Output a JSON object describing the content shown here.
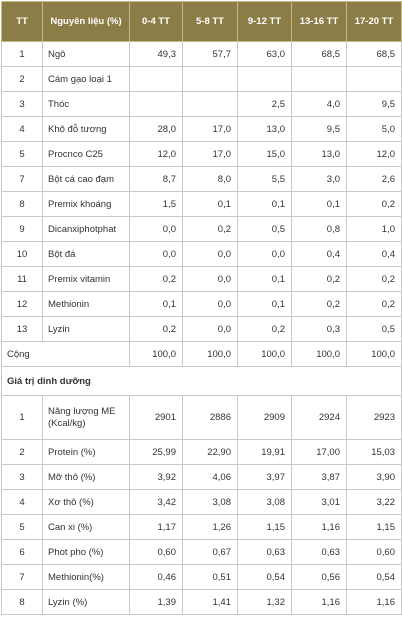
{
  "header": {
    "tt": "TT",
    "ingredient": "Nguyên liệu (%)",
    "phases": [
      "0-4 TT",
      "5-8 TT",
      "9-12 TT",
      "13-16 TT",
      "17-20 TT"
    ]
  },
  "ingredients": [
    {
      "tt": "1",
      "name": "Ngô",
      "values": [
        "49,3",
        "57,7",
        "63,0",
        "68,5",
        "68,5"
      ]
    },
    {
      "tt": "2",
      "name": "Cám gạo loại 1",
      "values": [
        "",
        "",
        "",
        "",
        ""
      ]
    },
    {
      "tt": "3",
      "name": "Thóc",
      "values": [
        "",
        "",
        "2,5",
        "4,0",
        "9,5"
      ]
    },
    {
      "tt": "4",
      "name": "Khô đỗ tương",
      "values": [
        "28,0",
        "17,0",
        "13,0",
        "9,5",
        "5,0"
      ]
    },
    {
      "tt": "5",
      "name": "Procnco C25",
      "values": [
        "12,0",
        "17,0",
        "15,0",
        "13,0",
        "12,0"
      ]
    },
    {
      "tt": "7",
      "name": "Bột cá cao đạm",
      "values": [
        "8,7",
        "8,0",
        "5,5",
        "3,0",
        "2,6"
      ]
    },
    {
      "tt": "8",
      "name": "Premix khoáng",
      "values": [
        "1,5",
        "0,1",
        "0,1",
        "0,1",
        "0,2"
      ]
    },
    {
      "tt": "9",
      "name": "Dicanxiphotphat",
      "values": [
        "0,0",
        "0,2",
        "0,5",
        "0,8",
        "1,0"
      ]
    },
    {
      "tt": "10",
      "name": "Bột đá",
      "values": [
        "0,0",
        "0,0",
        "0,0",
        "0,4",
        "0,4"
      ]
    },
    {
      "tt": "11",
      "name": "Premix vitamin",
      "values": [
        "0,2",
        "0,0",
        "0,1",
        "0,2",
        "0,2"
      ]
    },
    {
      "tt": "12",
      "name": "Methionin",
      "values": [
        "0,1",
        "0,0",
        "0,1",
        "0,2",
        "0,2"
      ]
    },
    {
      "tt": "13",
      "name": "Lyzin",
      "values": [
        "0,2",
        "0,0",
        "0,2",
        "0,3",
        "0,5"
      ]
    }
  ],
  "total": {
    "label": "Cộng",
    "values": [
      "100,0",
      "100,0",
      "100,0",
      "100,0",
      "100,0"
    ]
  },
  "nutrition_title": "Giá trị dinh dưỡng",
  "nutrition": [
    {
      "tt": "1",
      "name": "Năng lượng ME (Kcal/kg)",
      "values": [
        "2901",
        "2886",
        "2909",
        "2924",
        "2923"
      ]
    },
    {
      "tt": "2",
      "name": "Protein (%)",
      "values": [
        "25,99",
        "22,90",
        "19,91",
        "17,00",
        "15,03"
      ]
    },
    {
      "tt": "3",
      "name": "Mỡ thô (%)",
      "values": [
        "3,92",
        "4,06",
        "3,97",
        "3,87",
        "3,90"
      ]
    },
    {
      "tt": "4",
      "name": "Xơ thô (%)",
      "values": [
        "3,42",
        "3,08",
        "3,08",
        "3,01",
        "3,22"
      ]
    },
    {
      "tt": "5",
      "name": "Can xi (%)",
      "values": [
        "1,17",
        "1,26",
        "1,15",
        "1,16",
        "1,15"
      ]
    },
    {
      "tt": "6",
      "name": "Phot pho (%)",
      "values": [
        "0,60",
        "0,67",
        "0,63",
        "0,63",
        "0,60"
      ]
    },
    {
      "tt": "7",
      "name": "Methionin(%)",
      "values": [
        "0,46",
        "0,51",
        "0,54",
        "0,56",
        "0,54"
      ]
    },
    {
      "tt": "8",
      "name": "Lyzin (%)",
      "values": [
        "1,39",
        "1,41",
        "1,32",
        "1,16",
        "1,16"
      ]
    }
  ]
}
